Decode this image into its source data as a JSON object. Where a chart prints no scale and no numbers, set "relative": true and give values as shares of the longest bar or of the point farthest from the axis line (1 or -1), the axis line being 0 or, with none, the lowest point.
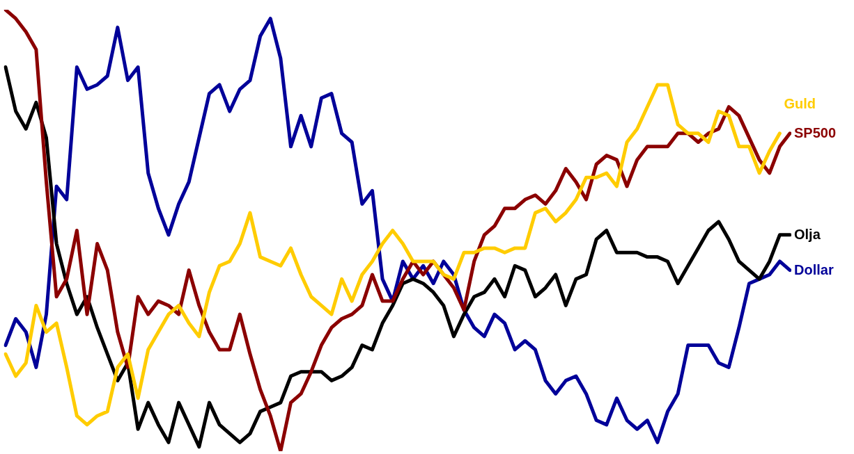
{
  "chart_data": {
    "type": "line",
    "relative": true,
    "marker": "none",
    "legend": false,
    "categories": [
      null,
      null,
      null,
      null,
      null,
      null,
      null,
      null,
      null,
      null,
      null,
      null,
      null,
      null,
      null,
      null,
      null,
      null,
      null,
      null,
      null,
      null,
      null,
      null,
      null,
      null,
      null,
      null,
      null,
      null,
      null,
      null,
      null,
      null,
      null,
      null,
      null,
      null,
      null,
      null,
      null,
      null,
      null,
      null,
      null,
      null,
      null,
      null,
      null,
      null,
      null,
      null,
      null,
      null,
      null,
      null,
      null,
      null,
      null,
      null,
      null,
      null,
      null,
      null,
      null,
      null,
      null,
      null,
      null,
      null,
      null,
      null,
      null,
      null,
      null,
      null,
      null,
      null
    ],
    "series": [
      {
        "name": "Guld",
        "color": "#ffcc00",
        "values": [
          0.22,
          0.17,
          0.2,
          0.33,
          0.27,
          0.29,
          0.19,
          0.08,
          0.06,
          0.08,
          0.09,
          0.19,
          0.22,
          0.12,
          0.23,
          0.27,
          0.31,
          0.33,
          0.29,
          0.26,
          0.36,
          0.42,
          0.43,
          0.47,
          0.54,
          0.44,
          0.43,
          0.42,
          0.46,
          0.4,
          0.35,
          0.33,
          0.31,
          0.39,
          0.34,
          0.4,
          0.43,
          0.47,
          0.5,
          0.47,
          0.43,
          0.43,
          0.43,
          0.4,
          0.39,
          0.45,
          0.45,
          0.46,
          0.46,
          0.45,
          0.46,
          0.46,
          0.54,
          0.55,
          0.52,
          0.54,
          0.57,
          0.62,
          0.62,
          0.63,
          0.6,
          0.7,
          0.73,
          0.78,
          0.83,
          0.83,
          0.74,
          0.72,
          0.72,
          0.7,
          0.77,
          0.76,
          0.69,
          0.69,
          0.63,
          0.68,
          0.72,
          null
        ]
      },
      {
        "name": "SP500",
        "color": "#8b0000",
        "values": [
          1.0,
          0.98,
          0.95,
          0.91,
          0.61,
          0.35,
          0.39,
          0.5,
          0.31,
          0.47,
          0.41,
          0.27,
          0.19,
          0.35,
          0.31,
          0.34,
          0.33,
          0.31,
          0.41,
          0.33,
          0.27,
          0.23,
          0.23,
          0.31,
          0.22,
          0.14,
          0.08,
          0.0,
          0.11,
          0.13,
          0.18,
          0.24,
          0.28,
          0.3,
          0.31,
          0.33,
          0.4,
          0.34,
          0.34,
          0.39,
          0.43,
          0.4,
          0.43,
          0.4,
          0.37,
          0.32,
          0.43,
          0.49,
          0.51,
          0.55,
          0.55,
          0.57,
          0.58,
          0.56,
          0.59,
          0.64,
          0.61,
          0.57,
          0.65,
          0.67,
          0.66,
          0.6,
          0.66,
          0.69,
          0.69,
          0.69,
          0.72,
          0.72,
          0.7,
          0.72,
          0.73,
          0.78,
          0.76,
          0.71,
          0.66,
          0.63,
          0.69,
          0.72
        ]
      },
      {
        "name": "Olja",
        "color": "#000000",
        "values": [
          0.87,
          0.77,
          0.73,
          0.79,
          0.71,
          0.47,
          0.38,
          0.31,
          0.35,
          0.28,
          0.22,
          0.16,
          0.2,
          0.05,
          0.11,
          0.06,
          0.02,
          0.11,
          0.06,
          0.01,
          0.11,
          0.06,
          0.04,
          0.02,
          0.04,
          0.09,
          0.1,
          0.11,
          0.17,
          0.18,
          0.18,
          0.18,
          0.16,
          0.17,
          0.19,
          0.24,
          0.23,
          0.29,
          0.33,
          0.38,
          0.39,
          0.38,
          0.36,
          0.33,
          0.26,
          0.31,
          0.35,
          0.36,
          0.39,
          0.35,
          0.42,
          0.41,
          0.35,
          0.37,
          0.4,
          0.33,
          0.39,
          0.4,
          0.48,
          0.5,
          0.45,
          0.45,
          0.45,
          0.44,
          0.44,
          0.43,
          0.38,
          0.42,
          0.46,
          0.5,
          0.52,
          0.48,
          0.43,
          0.41,
          0.39,
          0.43,
          0.49,
          0.49
        ]
      },
      {
        "name": "Dollar",
        "color": "#000099",
        "values": [
          0.24,
          0.3,
          0.27,
          0.19,
          0.31,
          0.6,
          0.57,
          0.87,
          0.82,
          0.83,
          0.85,
          0.96,
          0.84,
          0.87,
          0.63,
          0.55,
          0.49,
          0.56,
          0.61,
          0.71,
          0.81,
          0.83,
          0.77,
          0.82,
          0.84,
          0.94,
          0.98,
          0.89,
          0.69,
          0.76,
          0.69,
          0.8,
          0.81,
          0.72,
          0.7,
          0.56,
          0.59,
          0.39,
          0.34,
          0.43,
          0.39,
          0.42,
          0.38,
          0.43,
          0.4,
          0.32,
          0.28,
          0.26,
          0.31,
          0.29,
          0.23,
          0.25,
          0.23,
          0.16,
          0.13,
          0.16,
          0.17,
          0.13,
          0.07,
          0.06,
          0.12,
          0.07,
          0.05,
          0.07,
          0.02,
          0.09,
          0.13,
          0.24,
          0.24,
          0.24,
          0.2,
          0.19,
          0.28,
          0.38,
          0.39,
          0.4,
          0.43,
          0.41
        ]
      }
    ]
  }
}
